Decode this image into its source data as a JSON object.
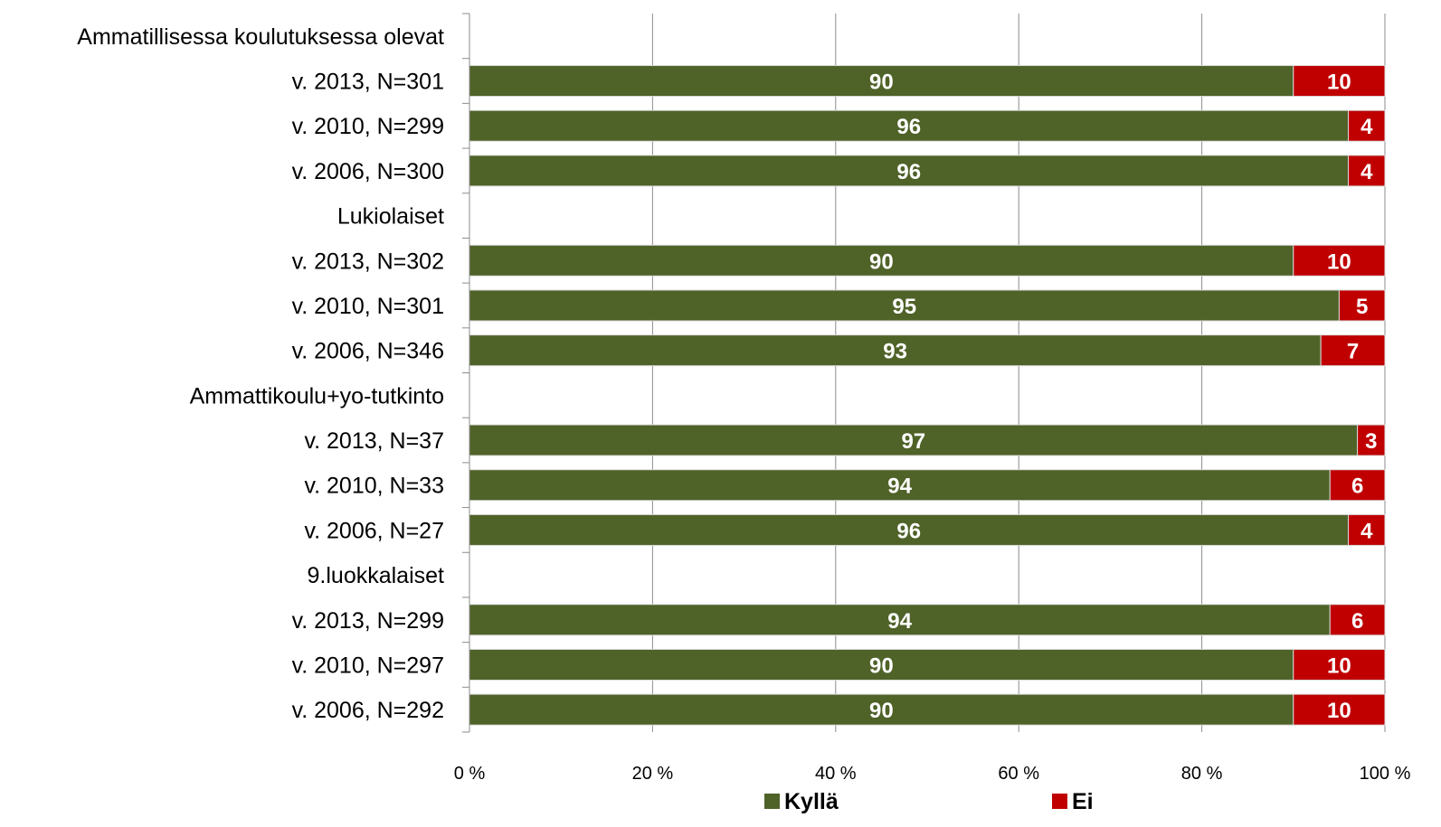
{
  "chart_data": {
    "type": "bar",
    "orientation": "horizontal",
    "stacked": true,
    "categories": [
      "Ammatillisessa koulutuksessa olevat",
      "v. 2013, N=301",
      "v. 2010, N=299",
      "v. 2006, N=300",
      "Lukiolaiset",
      "v. 2013, N=302",
      "v. 2010, N=301",
      "v. 2006, N=346",
      "Ammattikoulu+yo-tutkinto",
      "v. 2013, N=37",
      "v. 2010, N=33",
      "v. 2006, N=27",
      "9.luokkalaiset",
      "v. 2013, N=299",
      "v. 2010, N=297",
      "v. 2006, N=292"
    ],
    "series": [
      {
        "name": "Kyllä",
        "color": "#4f6228",
        "values": [
          null,
          90,
          96,
          96,
          null,
          90,
          95,
          93,
          null,
          97,
          94,
          96,
          null,
          94,
          90,
          90
        ]
      },
      {
        "name": "Ei",
        "color": "#c00000",
        "values": [
          null,
          10,
          4,
          4,
          null,
          10,
          5,
          7,
          null,
          3,
          6,
          4,
          null,
          6,
          10,
          10
        ]
      }
    ],
    "xlim": [
      0,
      100
    ],
    "xticks": [
      "0 %",
      "20 %",
      "40 %",
      "60 %",
      "80 %",
      "100 %"
    ],
    "grid": true,
    "legend": "bottom",
    "title": "",
    "xlabel": "",
    "ylabel": ""
  }
}
